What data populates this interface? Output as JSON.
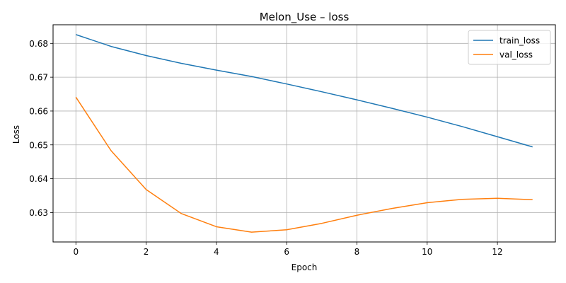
{
  "chart_data": {
    "type": "line",
    "title": "Melon_Use – loss",
    "xlabel": "Epoch",
    "ylabel": "Loss",
    "x": [
      0,
      1,
      2,
      3,
      4,
      5,
      6,
      7,
      8,
      9,
      10,
      11,
      12,
      13
    ],
    "xlim": [
      -0.65,
      13.65
    ],
    "ylim": [
      0.6213,
      0.6855
    ],
    "xticks": [
      0,
      2,
      4,
      6,
      8,
      10,
      12
    ],
    "yticks": [
      0.63,
      0.64,
      0.65,
      0.66,
      0.67,
      0.68
    ],
    "grid": true,
    "legend_position": "upper right",
    "series": [
      {
        "name": "train_loss",
        "color": "#1f77b4",
        "values": [
          0.6826,
          0.6791,
          0.6764,
          0.6741,
          0.6721,
          0.6702,
          0.668,
          0.6657,
          0.6633,
          0.6608,
          0.6582,
          0.6554,
          0.6524,
          0.6494
        ]
      },
      {
        "name": "val_loss",
        "color": "#ff7f0e",
        "values": [
          0.6641,
          0.6483,
          0.6368,
          0.6297,
          0.6258,
          0.6242,
          0.6249,
          0.6268,
          0.6292,
          0.6312,
          0.6329,
          0.6339,
          0.6342,
          0.6338
        ]
      }
    ]
  }
}
